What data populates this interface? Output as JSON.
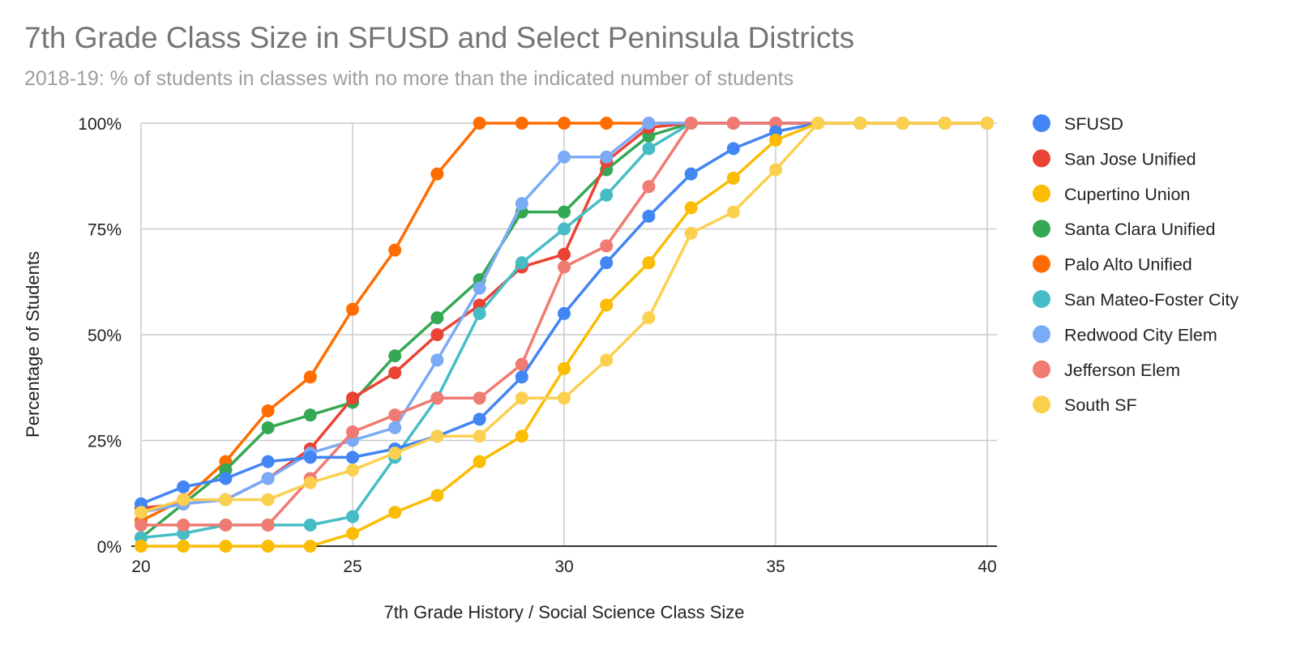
{
  "chart_data": {
    "type": "line",
    "title": "7th Grade Class Size in SFUSD and Select Peninsula Districts",
    "subtitle": "2018-19: % of students in classes with no more than the indicated number of students",
    "xlabel": "7th Grade History / Social Science Class Size",
    "ylabel": "Percentage of Students",
    "xlim": [
      20,
      40
    ],
    "ylim": [
      0,
      100
    ],
    "x_ticks": [
      20,
      25,
      30,
      35,
      40
    ],
    "y_ticks": [
      0,
      25,
      50,
      75,
      100
    ],
    "y_tick_labels": [
      "0%",
      "25%",
      "50%",
      "75%",
      "100%"
    ],
    "grid": true,
    "legend_position": "right",
    "x": [
      20,
      21,
      22,
      23,
      24,
      25,
      26,
      27,
      28,
      29,
      30,
      31,
      32,
      33,
      34,
      35,
      36,
      37,
      38,
      39,
      40
    ],
    "series": [
      {
        "name": "Palo Alto Unified",
        "color": "#ff6d01",
        "values": [
          6,
          11,
          20,
          32,
          40,
          56,
          70,
          88,
          100,
          100,
          100,
          100,
          100,
          100,
          100,
          100,
          100,
          100,
          100,
          100,
          100
        ]
      },
      {
        "name": "Santa Clara Unified",
        "color": "#34a853",
        "values": [
          2,
          10,
          18,
          28,
          31,
          34,
          45,
          54,
          63,
          79,
          79,
          89,
          97,
          100,
          100,
          100,
          100,
          100,
          100,
          100,
          100
        ]
      },
      {
        "name": "San Jose Unified",
        "color": "#ea4335",
        "values": [
          9,
          10,
          11,
          16,
          23,
          35,
          41,
          50,
          57,
          66,
          69,
          91,
          99,
          100,
          100,
          100,
          100,
          100,
          100,
          100,
          100
        ]
      },
      {
        "name": "San Mateo-Foster City",
        "color": "#46bdc6",
        "values": [
          2,
          3,
          5,
          5,
          5,
          7,
          21,
          35,
          55,
          67,
          75,
          83,
          94,
          100,
          100,
          100,
          100,
          100,
          100,
          100,
          100
        ]
      },
      {
        "name": "Redwood City Elem",
        "color": "#7baaf7",
        "values": [
          8,
          10,
          11,
          16,
          22,
          25,
          28,
          44,
          61,
          81,
          92,
          92,
          100,
          100,
          100,
          100,
          100,
          100,
          100,
          100,
          100
        ]
      },
      {
        "name": "Jefferson Elem",
        "color": "#f07b72",
        "values": [
          5,
          5,
          5,
          5,
          16,
          27,
          31,
          35,
          35,
          43,
          66,
          71,
          85,
          100,
          100,
          100,
          100,
          100,
          100,
          100,
          100
        ]
      },
      {
        "name": "SFUSD",
        "color": "#4285f4",
        "values": [
          10,
          14,
          16,
          20,
          21,
          21,
          23,
          26,
          30,
          40,
          55,
          67,
          78,
          88,
          94,
          98,
          100,
          100,
          100,
          100,
          100
        ]
      },
      {
        "name": "Cupertino Union",
        "color": "#fbbc04",
        "values": [
          0,
          0,
          0,
          0,
          0,
          3,
          8,
          12,
          20,
          26,
          42,
          57,
          67,
          80,
          87,
          96,
          100,
          100,
          100,
          100,
          100
        ]
      },
      {
        "name": "South SF",
        "color": "#fcd04f",
        "values": [
          8,
          11,
          11,
          11,
          15,
          18,
          22,
          26,
          26,
          35,
          35,
          44,
          54,
          74,
          79,
          89,
          100,
          100,
          100,
          100,
          100
        ]
      }
    ],
    "legend": [
      {
        "name": "SFUSD",
        "color": "#4285f4"
      },
      {
        "name": "San Jose Unified",
        "color": "#ea4335"
      },
      {
        "name": "Cupertino Union",
        "color": "#fbbc04"
      },
      {
        "name": "Santa Clara Unified",
        "color": "#34a853"
      },
      {
        "name": "Palo Alto Unified",
        "color": "#ff6d01"
      },
      {
        "name": "San Mateo-Foster City",
        "color": "#46bdc6"
      },
      {
        "name": "Redwood City Elem",
        "color": "#7baaf7"
      },
      {
        "name": "Jefferson Elem",
        "color": "#f07b72"
      },
      {
        "name": "South SF",
        "color": "#fcd04f"
      }
    ]
  }
}
